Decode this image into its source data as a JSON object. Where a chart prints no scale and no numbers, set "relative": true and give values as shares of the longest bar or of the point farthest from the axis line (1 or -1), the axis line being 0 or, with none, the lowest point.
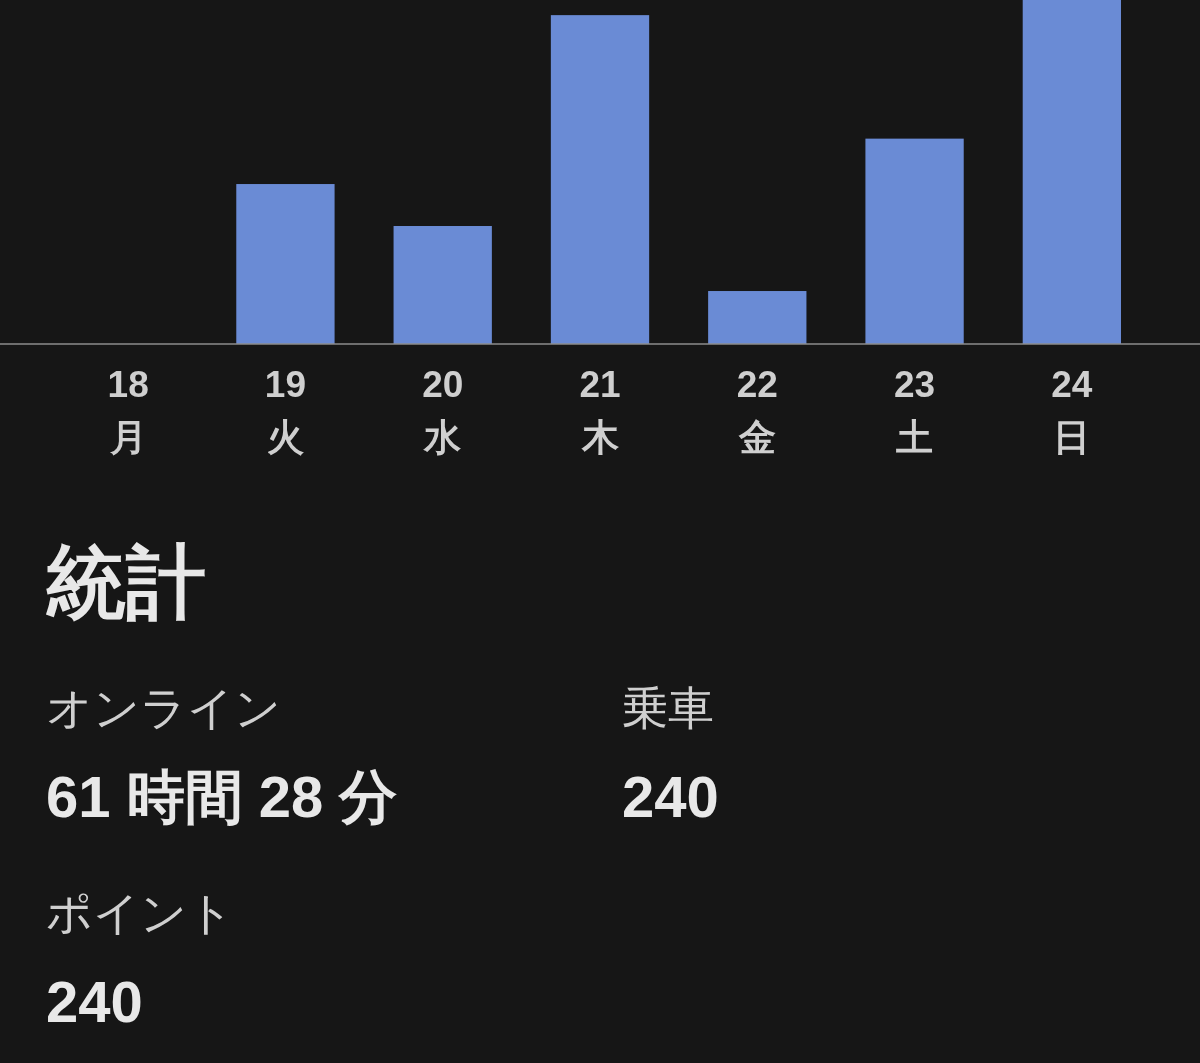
{
  "chart_data": [
    {
      "type": "bar",
      "relative": true,
      "categories": [
        "18\n月",
        "19\n火",
        "20\n水",
        "21\n木",
        "22\n金",
        "23\n土",
        "24\n日"
      ],
      "values": [
        0,
        0.465,
        0.343,
        0.956,
        0.154,
        0.597,
        1
      ],
      "color": "#6a8bd5"
    },
    {
      "type": "other",
      "title": "統計",
      "annotations": [
        "オンライン",
        "61 時間 28 分",
        "乗車",
        "240",
        "ポイント",
        "240"
      ]
    }
  ]
}
